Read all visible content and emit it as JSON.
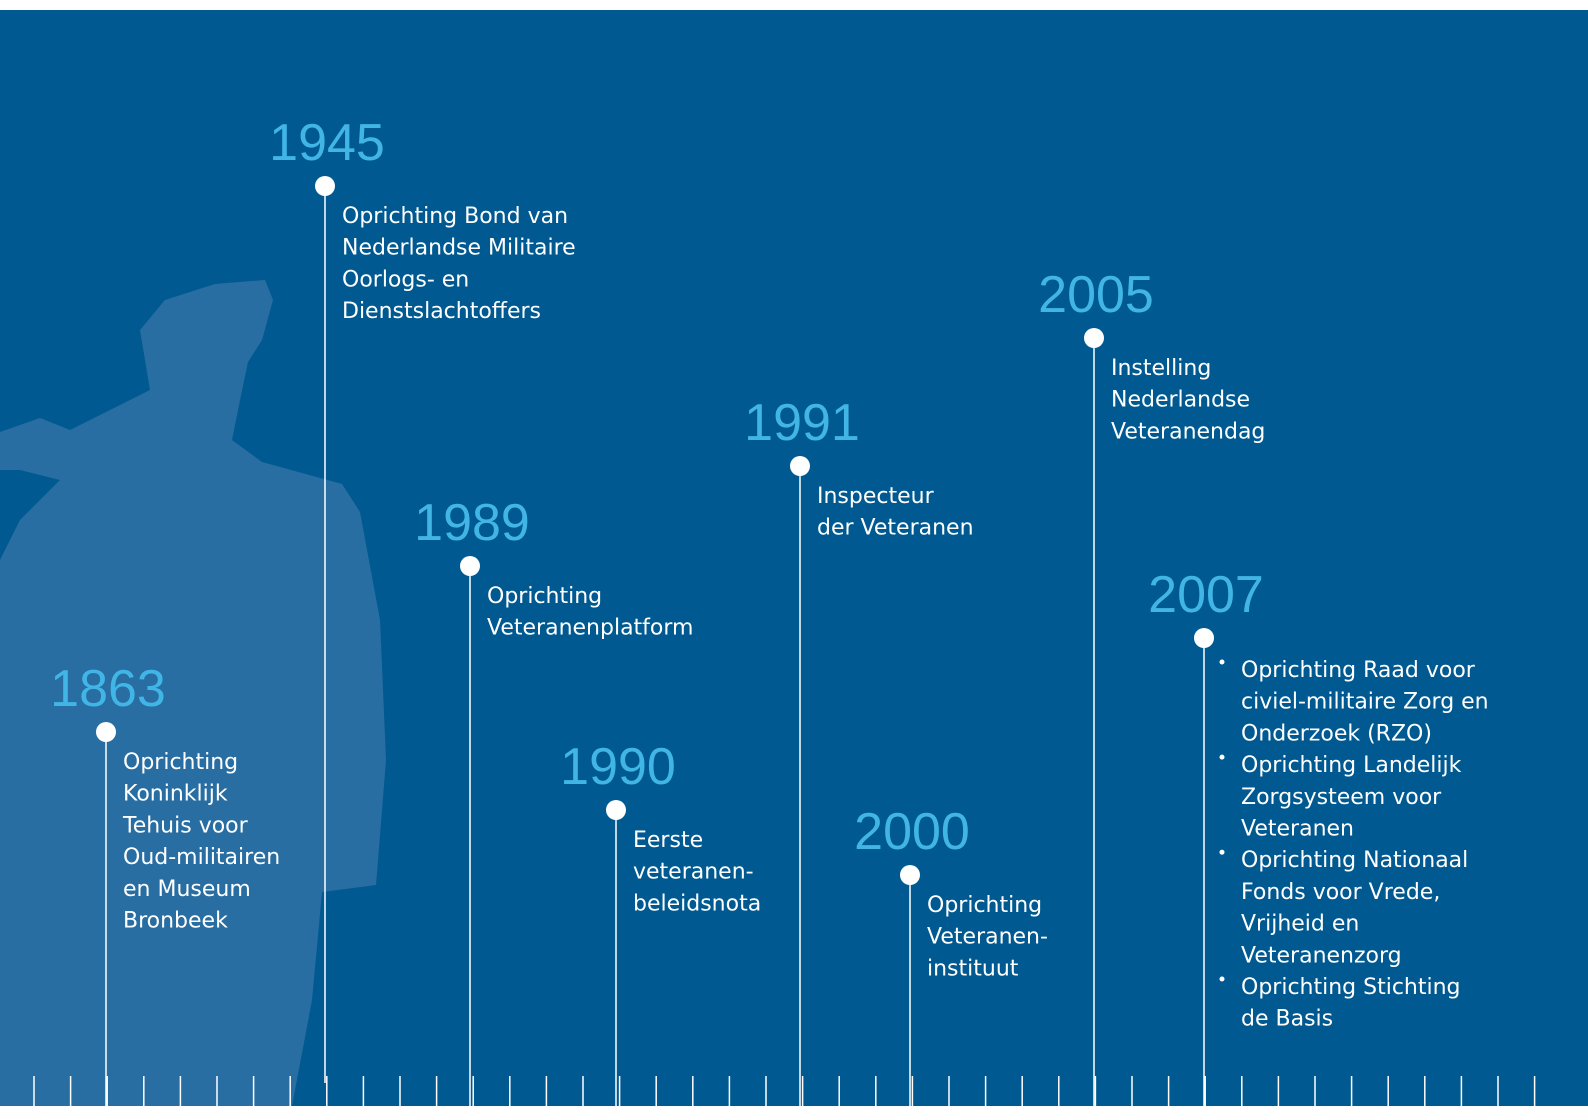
{
  "timeline": {
    "events": [
      {
        "year": "1863",
        "lines": [
          "Oprichting",
          "Koninklijk",
          "Tehuis voor",
          "Oud-militairen",
          "en Museum",
          "Bronbeek"
        ]
      },
      {
        "year": "1945",
        "lines": [
          "Oprichting Bond van",
          "Nederlandse Militaire",
          "Oorlogs- en",
          "Dienstslachtoffers"
        ]
      },
      {
        "year": "1989",
        "lines": [
          "Oprichting",
          "Veteranenplatform"
        ]
      },
      {
        "year": "1990",
        "lines": [
          "Eerste",
          "veteranen-",
          "beleidsnota"
        ]
      },
      {
        "year": "1991",
        "lines": [
          "Inspecteur",
          "der Veteranen"
        ]
      },
      {
        "year": "2000",
        "lines": [
          "Oprichting",
          "Veteranen-",
          "instituut"
        ]
      },
      {
        "year": "2005",
        "lines": [
          "Instelling",
          "Nederlandse",
          "Veteranendag"
        ]
      },
      {
        "year": "2007",
        "bullets": [
          [
            "Oprichting Raad voor",
            "civiel-militaire Zorg en",
            "Onderzoek (RZO)"
          ],
          [
            "Oprichting Landelijk",
            "Zorgsysteem voor",
            "Veteranen"
          ],
          [
            "Oprichting Nationaal",
            "Fonds voor Vrede,",
            "Vrijheid en",
            "Veteranenzorg"
          ],
          [
            "Oprichting Stichting",
            "de Basis"
          ]
        ]
      }
    ]
  }
}
